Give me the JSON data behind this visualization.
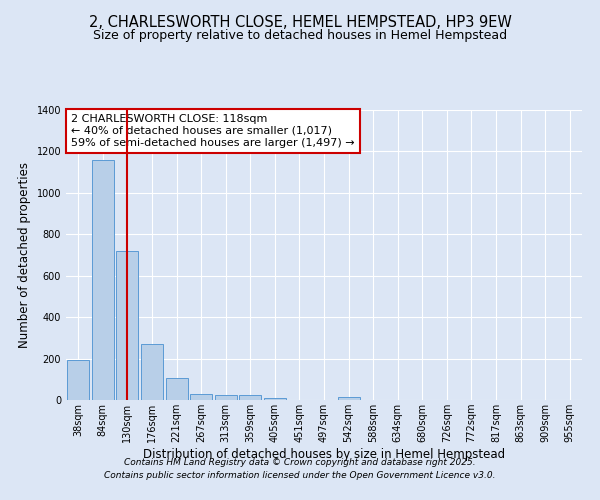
{
  "title": "2, CHARLESWORTH CLOSE, HEMEL HEMPSTEAD, HP3 9EW",
  "subtitle": "Size of property relative to detached houses in Hemel Hempstead",
  "xlabel": "Distribution of detached houses by size in Hemel Hempstead",
  "ylabel": "Number of detached properties",
  "categories": [
    "38sqm",
    "84sqm",
    "130sqm",
    "176sqm",
    "221sqm",
    "267sqm",
    "313sqm",
    "359sqm",
    "405sqm",
    "451sqm",
    "497sqm",
    "542sqm",
    "588sqm",
    "634sqm",
    "680sqm",
    "726sqm",
    "772sqm",
    "817sqm",
    "863sqm",
    "909sqm",
    "955sqm"
  ],
  "values": [
    195,
    1160,
    720,
    270,
    105,
    30,
    25,
    25,
    10,
    0,
    0,
    15,
    0,
    0,
    0,
    0,
    0,
    0,
    0,
    0,
    0
  ],
  "bar_color": "#b8cfe8",
  "bar_edge_color": "#5b9bd5",
  "background_color": "#dce6f5",
  "grid_color": "#ffffff",
  "red_line_x": 1.97,
  "annotation_text": "2 CHARLESWORTH CLOSE: 118sqm\n← 40% of detached houses are smaller (1,017)\n59% of semi-detached houses are larger (1,497) →",
  "annotation_box_facecolor": "#ffffff",
  "annotation_border_color": "#cc0000",
  "ylim": [
    0,
    1400
  ],
  "yticks": [
    0,
    200,
    400,
    600,
    800,
    1000,
    1200,
    1400
  ],
  "footer_line1": "Contains HM Land Registry data © Crown copyright and database right 2025.",
  "footer_line2": "Contains public sector information licensed under the Open Government Licence v3.0.",
  "title_fontsize": 10.5,
  "subtitle_fontsize": 9,
  "axis_label_fontsize": 8.5,
  "tick_fontsize": 7,
  "annotation_fontsize": 8,
  "footer_fontsize": 6.5
}
